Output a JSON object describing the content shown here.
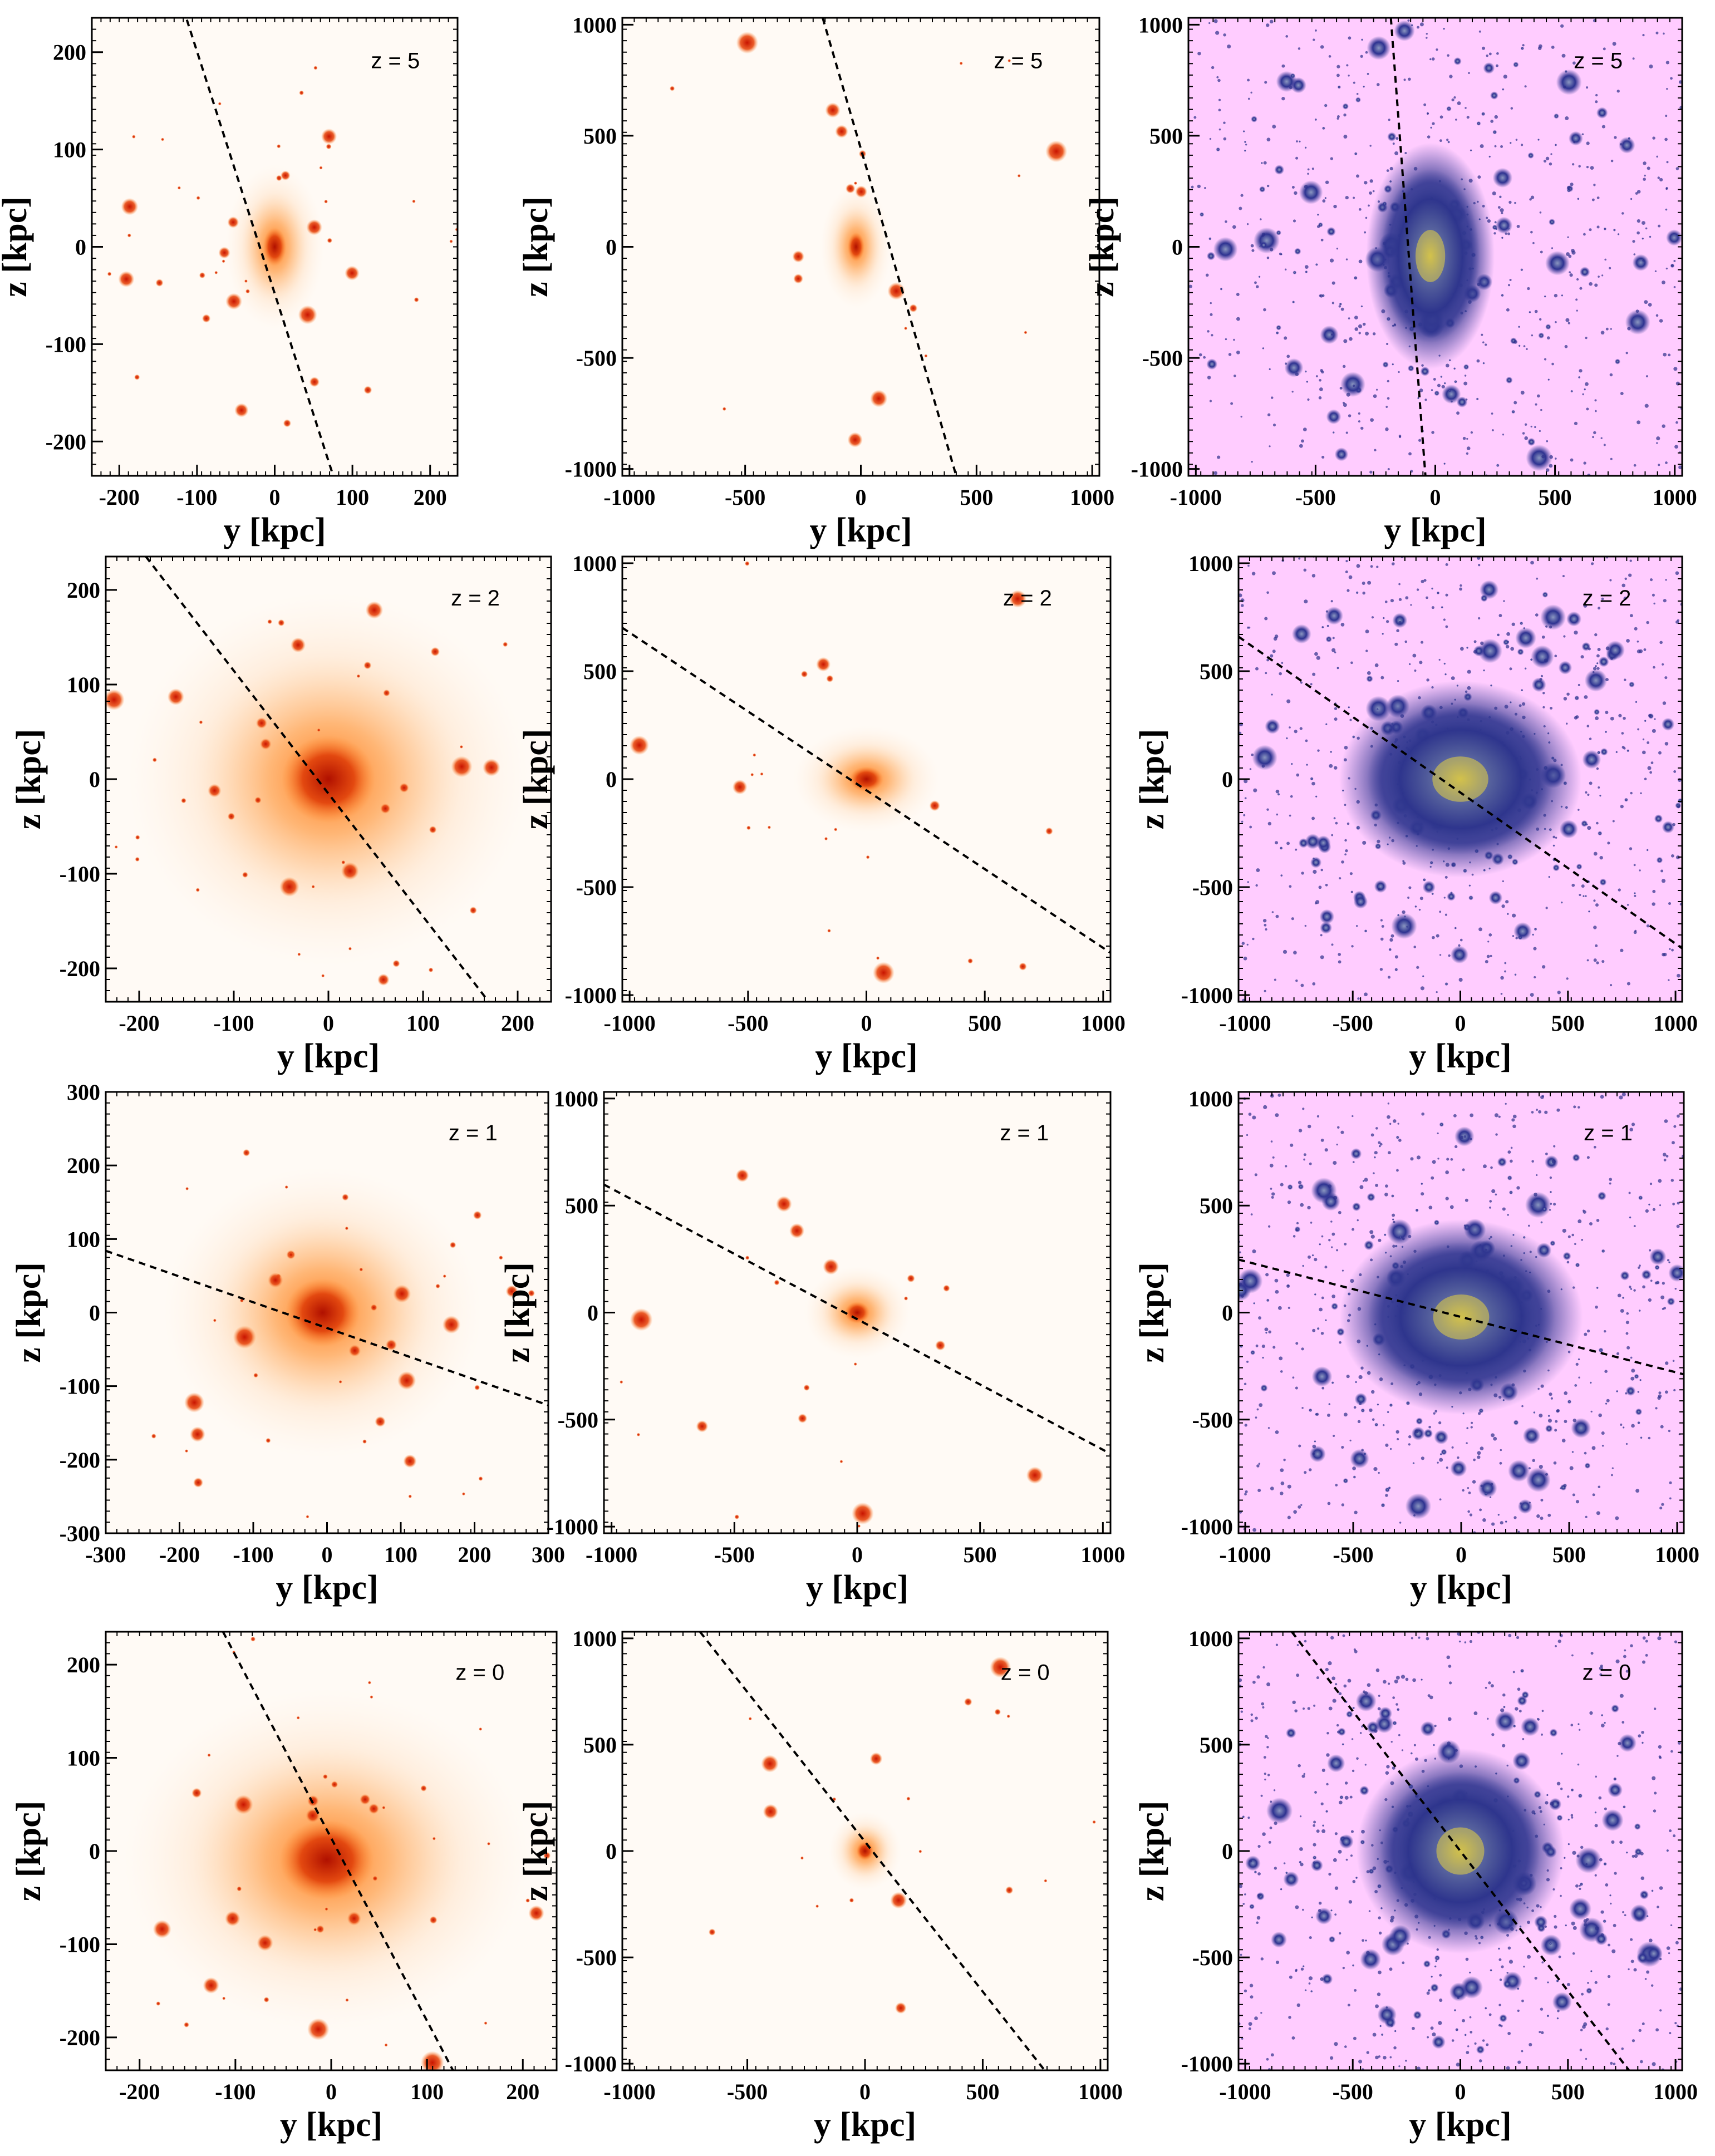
{
  "figure": {
    "x_title": "y [kpc]",
    "y_title": "z [kpc]",
    "colors": {
      "star_bg": "#fffaf5",
      "star_glow": "#ff7a1a",
      "star_core": "#d01c00",
      "dm_bg": "#ffccff",
      "dm_blob": "#2c2f8a",
      "dm_core": "#d8c84a",
      "axis_line": "#000000"
    },
    "rows": [
      {
        "redshift_label": "z = 5",
        "panels": [
          {
            "kind": "stars",
            "ticks": {
              "x": [
                "-200",
                "-100",
                "0",
                "100",
                "200"
              ],
              "y": [
                "200",
                "100",
                "0",
                "-100",
                "-200"
              ]
            }
          },
          {
            "kind": "stars",
            "ticks": {
              "x": [
                "-1000",
                "-500",
                "0",
                "500",
                "1000"
              ],
              "y": [
                "1000",
                "500",
                "0",
                "-500",
                "-1000"
              ]
            }
          },
          {
            "kind": "dm",
            "ticks": {
              "x": [
                "-1000",
                "-500",
                "0",
                "500",
                "1000"
              ],
              "y": [
                "1000",
                "500",
                "0",
                "-500",
                "-1000"
              ]
            }
          }
        ]
      },
      {
        "redshift_label": "z = 2",
        "panels": [
          {
            "kind": "stars",
            "ticks": {
              "x": [
                "-200",
                "-100",
                "0",
                "100",
                "200"
              ],
              "y": [
                "200",
                "100",
                "0",
                "-100",
                "-200"
              ]
            }
          },
          {
            "kind": "stars",
            "ticks": {
              "x": [
                "-1000",
                "-500",
                "0",
                "500",
                "1000"
              ],
              "y": [
                "1000",
                "500",
                "0",
                "-500",
                "-1000"
              ]
            }
          },
          {
            "kind": "dm",
            "ticks": {
              "x": [
                "-1000",
                "-500",
                "0",
                "500",
                "1000"
              ],
              "y": [
                "1000",
                "500",
                "0",
                "-500",
                "-1000"
              ]
            }
          }
        ]
      },
      {
        "redshift_label": "z = 1",
        "panels": [
          {
            "kind": "stars",
            "ticks": {
              "x": [
                "-300",
                "-200",
                "-100",
                "0",
                "100",
                "200",
                "300"
              ],
              "y": [
                "300",
                "200",
                "100",
                "0",
                "-100",
                "-200",
                "-300"
              ]
            }
          },
          {
            "kind": "stars",
            "ticks": {
              "x": [
                "-1000",
                "-500",
                "0",
                "500",
                "1000"
              ],
              "y": [
                "1000",
                "500",
                "0",
                "-500",
                "-1000"
              ]
            }
          },
          {
            "kind": "dm",
            "ticks": {
              "x": [
                "-1000",
                "-500",
                "0",
                "500",
                "1000"
              ],
              "y": [
                "1000",
                "500",
                "0",
                "-500",
                "-1000"
              ]
            }
          }
        ]
      },
      {
        "redshift_label": "z = 0",
        "panels": [
          {
            "kind": "stars",
            "ticks": {
              "x": [
                "-200",
                "-100",
                "0",
                "100",
                "200"
              ],
              "y": [
                "200",
                "100",
                "0",
                "-100",
                "-200"
              ]
            }
          },
          {
            "kind": "stars",
            "ticks": {
              "x": [
                "-1000",
                "-500",
                "0",
                "500",
                "1000"
              ],
              "y": [
                "1000",
                "500",
                "0",
                "-500",
                "-1000"
              ]
            }
          },
          {
            "kind": "dm",
            "ticks": {
              "x": [
                "-1000",
                "-500",
                "0",
                "500",
                "1000"
              ],
              "y": [
                "1000",
                "500",
                "0",
                "-500",
                "-1000"
              ]
            }
          }
        ]
      }
    ]
  }
}
